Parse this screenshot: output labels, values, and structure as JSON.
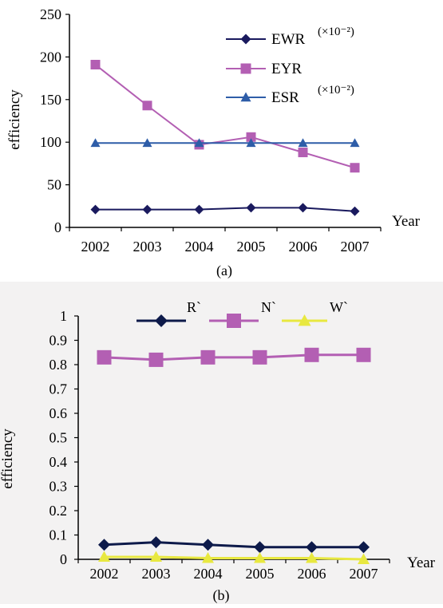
{
  "chart_data": [
    {
      "type": "line",
      "panel_label": "(a)",
      "xlabel": "Year",
      "ylabel": "efficiency",
      "ylim": [
        0,
        250
      ],
      "yticks": [
        0,
        50,
        100,
        150,
        200,
        250
      ],
      "categories": [
        "2002",
        "2003",
        "2004",
        "2005",
        "2006",
        "2007"
      ],
      "legend_position": "top-right",
      "grid": false,
      "series": [
        {
          "name": "EWR",
          "suffix": "(×10⁻²)",
          "color": "#1a1a5e",
          "marker": "diamond",
          "values": [
            21,
            21,
            21,
            23,
            23,
            19
          ]
        },
        {
          "name": "EYR",
          "suffix": "",
          "color": "#b35fb3",
          "marker": "square",
          "values": [
            191,
            143,
            97,
            106,
            88,
            70
          ]
        },
        {
          "name": "ESR",
          "suffix": "(×10⁻²)",
          "color": "#2e5da8",
          "marker": "triangle",
          "values": [
            99,
            99,
            99,
            99,
            99,
            99
          ]
        }
      ]
    },
    {
      "type": "line",
      "panel_label": "(b)",
      "xlabel": "Year",
      "ylabel": "efficiency",
      "ylim": [
        0,
        1
      ],
      "yticks": [
        0,
        0.1,
        0.2,
        0.3,
        0.4,
        0.5,
        0.6,
        0.7,
        0.8,
        0.9,
        1
      ],
      "ytick_labels": [
        "0",
        "0.1",
        "0.2",
        "0.3",
        "0.4",
        "0.5",
        "0.6",
        "0.7",
        "0.8",
        "0.9",
        "1"
      ],
      "categories": [
        "2002",
        "2003",
        "2004",
        "2005",
        "2006",
        "2007"
      ],
      "legend_position": "top",
      "grid": false,
      "series": [
        {
          "name": "R`",
          "color": "#0d1a4a",
          "marker": "diamond",
          "values": [
            0.06,
            0.07,
            0.06,
            0.05,
            0.05,
            0.05
          ]
        },
        {
          "name": "N`",
          "color": "#b35fb3",
          "marker": "square",
          "values": [
            0.83,
            0.82,
            0.83,
            0.83,
            0.84,
            0.84
          ]
        },
        {
          "name": "W`",
          "color": "#e8e840",
          "marker": "triangle",
          "values": [
            0.01,
            0.01,
            0.005,
            0.005,
            0.005,
            0.0
          ]
        }
      ]
    }
  ]
}
